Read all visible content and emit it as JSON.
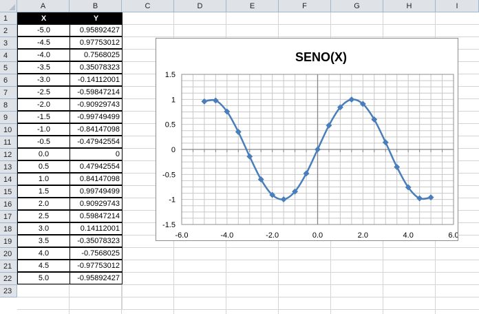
{
  "sheet": {
    "columns": [
      "A",
      "B",
      "C",
      "D",
      "E",
      "F",
      "G",
      "H",
      "I"
    ],
    "rows": [
      "1",
      "2",
      "3",
      "4",
      "5",
      "6",
      "7",
      "8",
      "9",
      "10",
      "11",
      "12",
      "13",
      "14",
      "15",
      "16",
      "17",
      "18",
      "19",
      "20",
      "21",
      "22",
      "23"
    ],
    "table": {
      "headers": [
        "X",
        "Y"
      ],
      "rows": [
        {
          "x": "-5.0",
          "y": "0.95892427"
        },
        {
          "x": "-4.5",
          "y": "0.97753012"
        },
        {
          "x": "-4.0",
          "y": "0.7568025"
        },
        {
          "x": "-3.5",
          "y": "0.35078323"
        },
        {
          "x": "-3.0",
          "y": "-0.14112001"
        },
        {
          "x": "-2.5",
          "y": "-0.59847214"
        },
        {
          "x": "-2.0",
          "y": "-0.90929743"
        },
        {
          "x": "-1.5",
          "y": "-0.99749499"
        },
        {
          "x": "-1.0",
          "y": "-0.84147098"
        },
        {
          "x": "-0.5",
          "y": "-0.47942554"
        },
        {
          "x": "0.0",
          "y": "0"
        },
        {
          "x": "0.5",
          "y": "0.47942554"
        },
        {
          "x": "1.0",
          "y": "0.84147098"
        },
        {
          "x": "1.5",
          "y": "0.99749499"
        },
        {
          "x": "2.0",
          "y": "0.90929743"
        },
        {
          "x": "2.5",
          "y": "0.59847214"
        },
        {
          "x": "3.0",
          "y": "0.14112001"
        },
        {
          "x": "3.5",
          "y": "-0.35078323"
        },
        {
          "x": "4.0",
          "y": "-0.7568025"
        },
        {
          "x": "4.5",
          "y": "-0.97753012"
        },
        {
          "x": "5.0",
          "y": "-0.95892427"
        }
      ]
    }
  },
  "chart_data": {
    "type": "scatter",
    "title": "SENO(X)",
    "xlabel": "",
    "ylabel": "",
    "xlim": [
      -6,
      6
    ],
    "ylim": [
      -1.5,
      1.5
    ],
    "x_ticks": [
      "-6.0",
      "-4.0",
      "-2.0",
      "0.0",
      "2.0",
      "4.0",
      "6.0"
    ],
    "y_ticks": [
      "1.5",
      "1",
      "0.5",
      "0",
      "-0.5",
      "-1",
      "-1.5"
    ],
    "x_tick_values": [
      -6,
      -4,
      -2,
      0,
      2,
      4,
      6
    ],
    "y_tick_values": [
      1.5,
      1,
      0.5,
      0,
      -0.5,
      -1,
      -1.5
    ],
    "grid": true,
    "legend": "none",
    "series": [
      {
        "name": "Y",
        "color": "#4a7ebb",
        "marker": "diamond",
        "x": [
          -5.0,
          -4.5,
          -4.0,
          -3.5,
          -3.0,
          -2.5,
          -2.0,
          -1.5,
          -1.0,
          -0.5,
          0.0,
          0.5,
          1.0,
          1.5,
          2.0,
          2.5,
          3.0,
          3.5,
          4.0,
          4.5,
          5.0
        ],
        "y": [
          0.95892427,
          0.97753012,
          0.7568025,
          0.35078323,
          -0.14112001,
          -0.59847214,
          -0.90929743,
          -0.99749499,
          -0.84147098,
          -0.47942554,
          0,
          0.47942554,
          0.84147098,
          0.99749499,
          0.90929743,
          0.59847214,
          0.14112001,
          -0.35078323,
          -0.7568025,
          -0.97753012,
          -0.95892427
        ]
      }
    ]
  }
}
